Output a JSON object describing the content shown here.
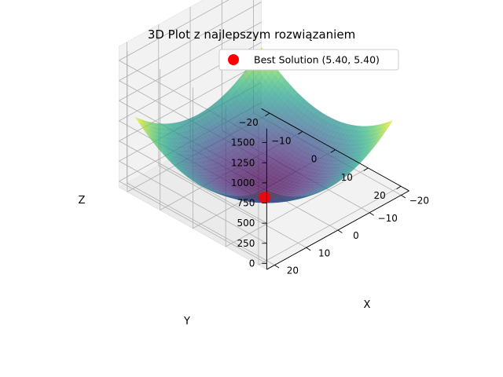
{
  "chart_data": {
    "type": "surface3d",
    "title": "3D Plot z najlepszym rozwiązaniem",
    "xlabel": "X",
    "ylabel": "Y",
    "zlabel": "Z",
    "xlim": [
      -20,
      20
    ],
    "ylim": [
      -20,
      20
    ],
    "zlim": [
      0,
      1600
    ],
    "x_ticks": [
      -20,
      -10,
      0,
      10,
      20
    ],
    "y_ticks": [
      -20,
      -10,
      0,
      10,
      20
    ],
    "z_ticks": [
      0,
      250,
      500,
      750,
      1000,
      1250,
      1500
    ],
    "surface": {
      "function": "x^2 + y^2",
      "colormap": "viridis",
      "alpha": 0.7,
      "range": [
        -20,
        20
      ]
    },
    "series": [
      {
        "name": "Best Solution (5.40, 5.40)",
        "type": "scatter",
        "x": 5.4,
        "y": 5.4,
        "z": 58.3,
        "color": "#ff0000"
      }
    ],
    "legend": {
      "position": "top-right"
    },
    "grid": true,
    "view": {
      "elev": 30,
      "azim": 30
    }
  }
}
